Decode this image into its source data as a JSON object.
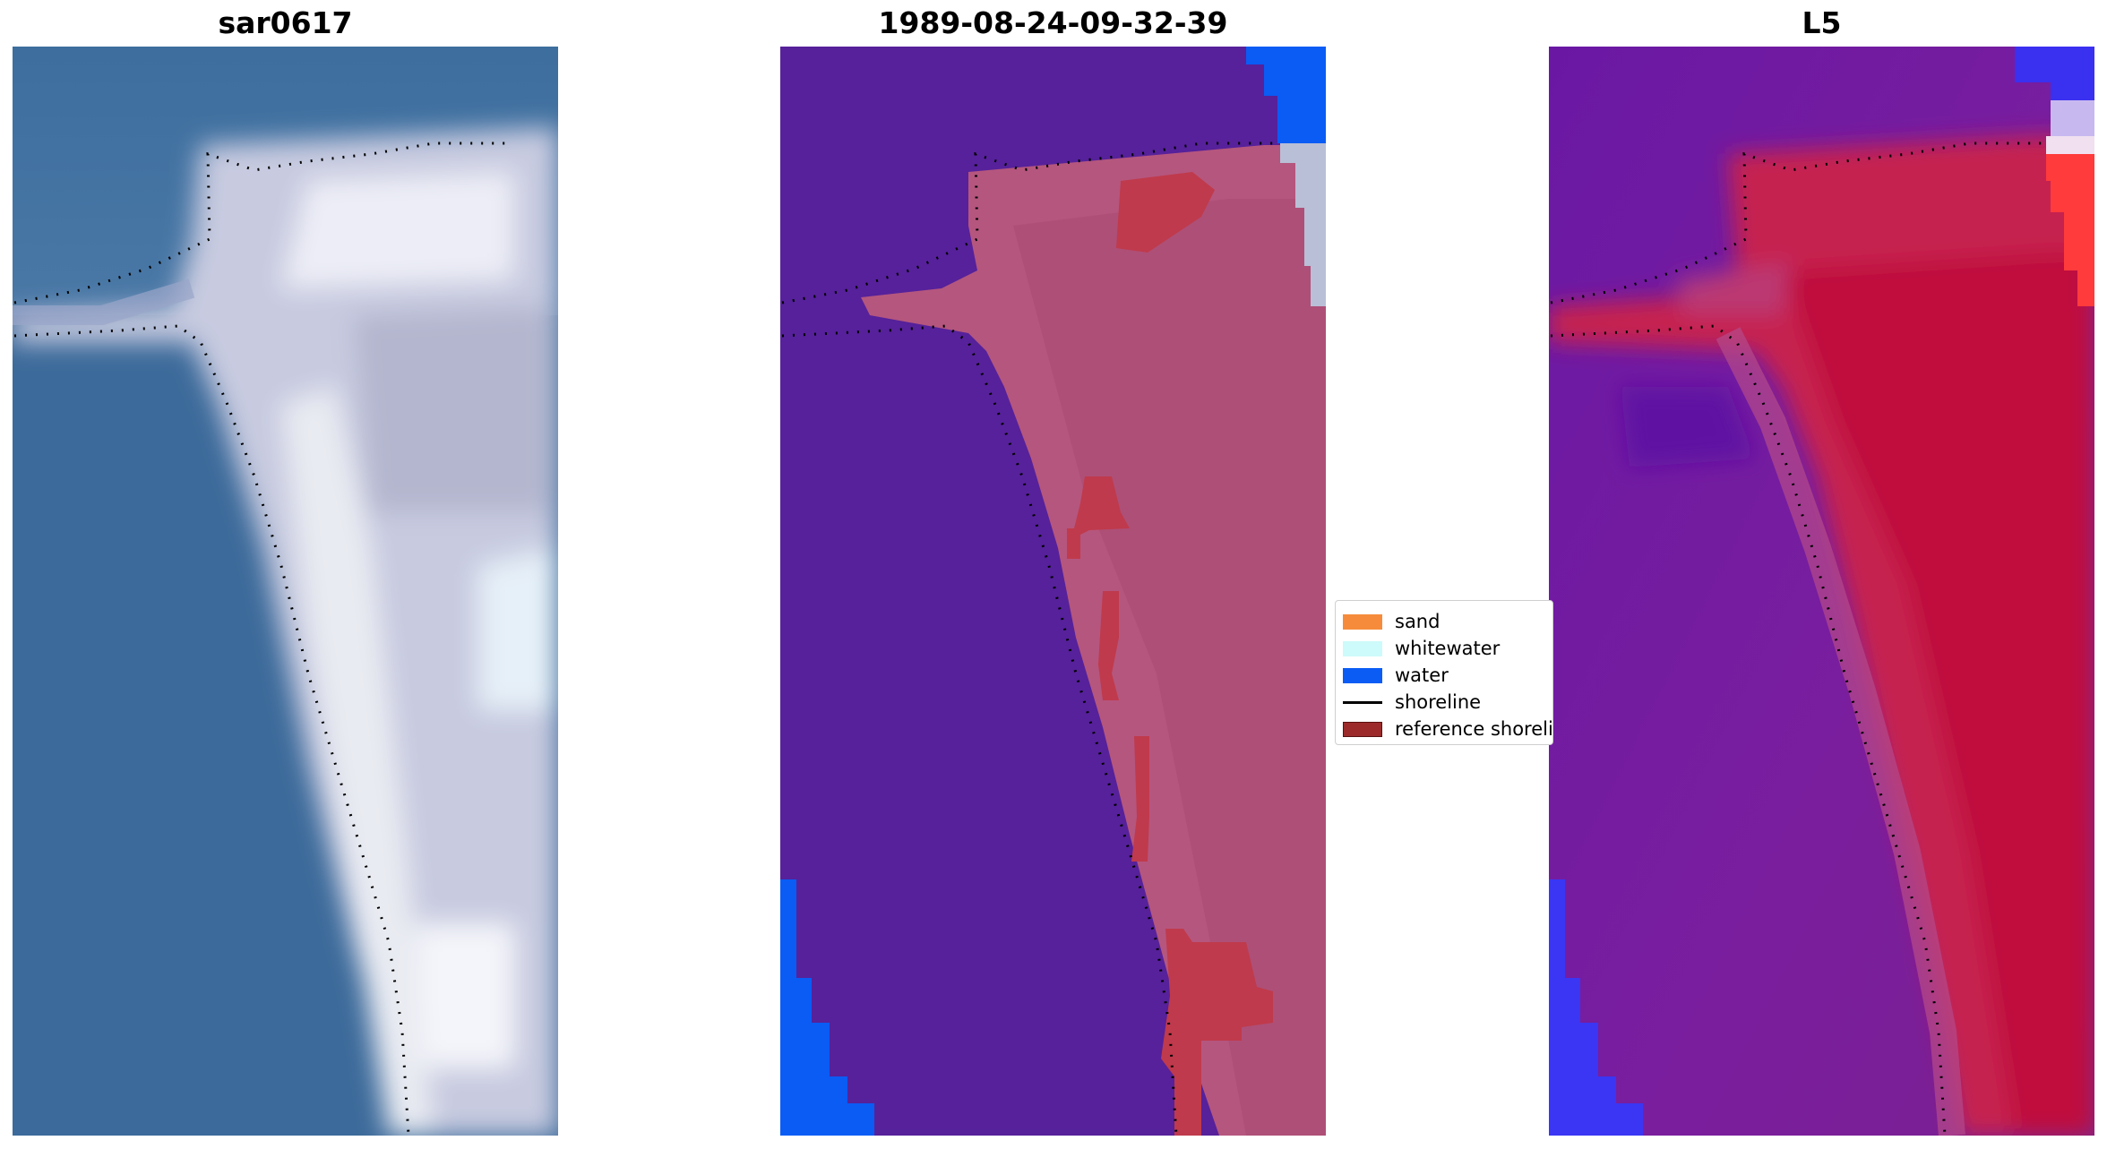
{
  "panels": [
    {
      "title": "sar0617",
      "content": "true-color-satellite-image"
    },
    {
      "title": "1989-08-24-09-32-39",
      "content": "classified-image-overlay"
    },
    {
      "title": "L5",
      "content": "index-heatmap"
    }
  ],
  "legend": {
    "items": [
      {
        "label": "sand",
        "color": "#f68c3b",
        "kind": "patch"
      },
      {
        "label": "whitewater",
        "color": "#cdfafa",
        "kind": "patch"
      },
      {
        "label": "water",
        "color": "#0a5cf5",
        "kind": "patch"
      },
      {
        "label": "shoreline",
        "color": "#000000",
        "kind": "line"
      },
      {
        "label": "reference shoreline",
        "color": "#9c2a2a",
        "kind": "patch"
      }
    ]
  },
  "colors": {
    "rgb_water": "#3b6a9c",
    "rgb_sand": "#dfe3ee",
    "class_water_bg": "#56219a",
    "class_land": "#b5567e",
    "class_sand": "#bf3a4c",
    "class_water": "#0a5cf5",
    "index_water": "#6a1aa8",
    "index_land": "#c0143c",
    "index_bright": "#ff2a2a"
  }
}
